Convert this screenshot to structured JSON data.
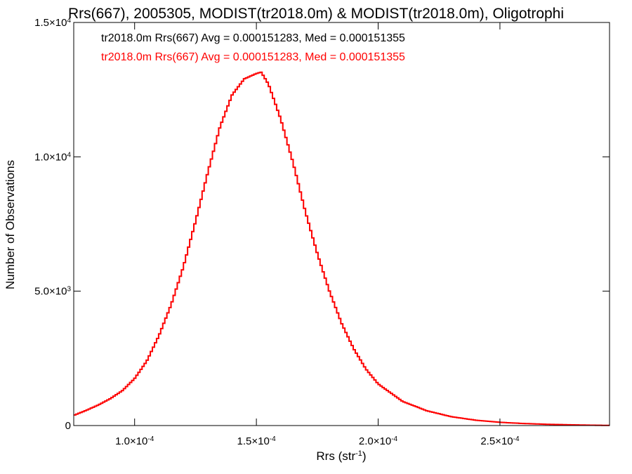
{
  "chart_data": {
    "type": "histogram",
    "title": "Rrs(667), 2005305, MODIST(tr2018.0m) & MODIST(tr2018.0m), Oligotrophi",
    "xlabel": "Rrs (str",
    "xlabel_sup": "-1",
    "xlabel_suffix": ")",
    "ylabel": "Number of Observations",
    "xlim": [
      7.5e-05,
      0.000295
    ],
    "ylim": [
      0,
      15000
    ],
    "x_ticks": [
      {
        "value": 0.0001,
        "mant": "1.0×10",
        "exp": "-4"
      },
      {
        "value": 0.00015,
        "mant": "1.5×10",
        "exp": "-4"
      },
      {
        "value": 0.0002,
        "mant": "2.0×10",
        "exp": "-4"
      },
      {
        "value": 0.00025,
        "mant": "2.5×10",
        "exp": "-4"
      }
    ],
    "y_ticks": [
      {
        "value": 0,
        "mant": "0",
        "exp": ""
      },
      {
        "value": 5000,
        "mant": "5.0×10",
        "exp": "3"
      },
      {
        "value": 10000,
        "mant": "1.0×10",
        "exp": "4"
      },
      {
        "value": 15000,
        "mant": "1.5×10",
        "exp": "4"
      }
    ],
    "annotations": [
      {
        "text": "tr2018.0m Rrs(667) Avg = 0.000151283, Med = 0.000151355",
        "color": "#000000"
      },
      {
        "text": "tr2018.0m Rrs(667) Avg = 0.000151283, Med = 0.000151355",
        "color": "#ff0000"
      }
    ],
    "series": [
      {
        "color": "#000000",
        "x": [
          7.5e-05,
          8e-05,
          8.5e-05,
          9e-05,
          9.5e-05,
          0.0001,
          0.000105,
          0.00011,
          0.000115,
          0.00012,
          0.000125,
          0.00013,
          0.000135,
          0.00014,
          0.000145,
          0.00015,
          0.000152,
          0.000155,
          0.00016,
          0.000165,
          0.00017,
          0.000175,
          0.00018,
          0.000185,
          0.00019,
          0.000195,
          0.0002,
          0.00021,
          0.00022,
          0.00023,
          0.00024,
          0.00025,
          0.00026,
          0.00027,
          0.00028,
          0.00029,
          0.000295
        ],
        "y": [
          380,
          560,
          760,
          1000,
          1300,
          1750,
          2400,
          3350,
          4500,
          5900,
          7600,
          9400,
          11100,
          12300,
          12900,
          13100,
          13150,
          12700,
          11400,
          9800,
          8000,
          6400,
          5000,
          3800,
          2850,
          2100,
          1550,
          900,
          550,
          330,
          200,
          120,
          75,
          45,
          25,
          10,
          5
        ]
      },
      {
        "color": "#ff0000",
        "x": [
          7.5e-05,
          8e-05,
          8.5e-05,
          9e-05,
          9.5e-05,
          0.0001,
          0.000105,
          0.00011,
          0.000115,
          0.00012,
          0.000125,
          0.00013,
          0.000135,
          0.00014,
          0.000145,
          0.00015,
          0.000152,
          0.000155,
          0.00016,
          0.000165,
          0.00017,
          0.000175,
          0.00018,
          0.000185,
          0.00019,
          0.000195,
          0.0002,
          0.00021,
          0.00022,
          0.00023,
          0.00024,
          0.00025,
          0.00026,
          0.00027,
          0.00028,
          0.00029,
          0.000295
        ],
        "y": [
          380,
          560,
          760,
          1000,
          1300,
          1750,
          2400,
          3350,
          4500,
          5900,
          7600,
          9400,
          11100,
          12300,
          12900,
          13100,
          13150,
          12700,
          11400,
          9800,
          8000,
          6400,
          5000,
          3800,
          2850,
          2100,
          1550,
          900,
          550,
          330,
          200,
          120,
          75,
          45,
          25,
          10,
          5
        ]
      }
    ],
    "grid": false,
    "legend": "none"
  }
}
